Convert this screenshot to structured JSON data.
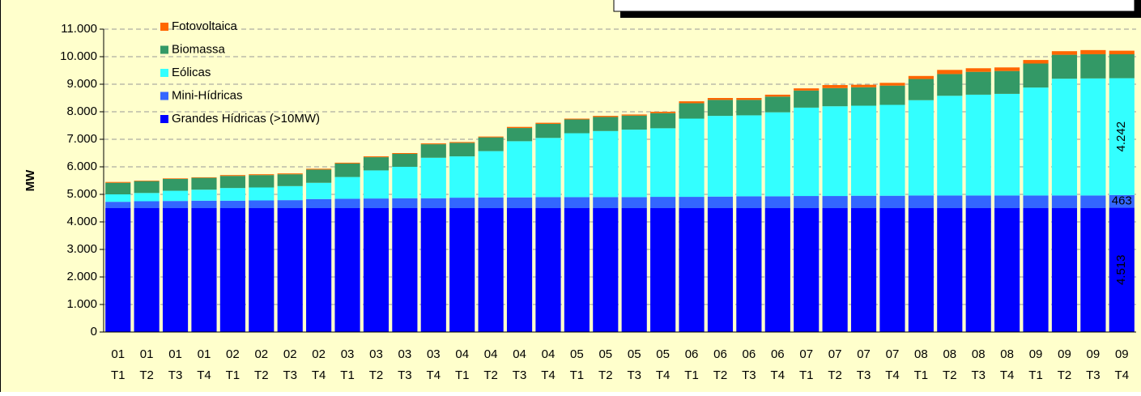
{
  "chart_data": {
    "type": "stacked_bar",
    "y_label": "MW",
    "categories": [
      [
        "01",
        "T1"
      ],
      [
        "01",
        "T2"
      ],
      [
        "01",
        "T3"
      ],
      [
        "01",
        "T4"
      ],
      [
        "02",
        "T1"
      ],
      [
        "02",
        "T2"
      ],
      [
        "02",
        "T3"
      ],
      [
        "02",
        "T4"
      ],
      [
        "03",
        "T1"
      ],
      [
        "03",
        "T2"
      ],
      [
        "03",
        "T3"
      ],
      [
        "03",
        "T4"
      ],
      [
        "04",
        "T1"
      ],
      [
        "04",
        "T2"
      ],
      [
        "04",
        "T3"
      ],
      [
        "04",
        "T4"
      ],
      [
        "05",
        "T1"
      ],
      [
        "05",
        "T2"
      ],
      [
        "05",
        "T3"
      ],
      [
        "05",
        "T4"
      ],
      [
        "06",
        "T1"
      ],
      [
        "06",
        "T2"
      ],
      [
        "06",
        "T3"
      ],
      [
        "06",
        "T4"
      ],
      [
        "07",
        "T1"
      ],
      [
        "07",
        "T2"
      ],
      [
        "07",
        "T3"
      ],
      [
        "07",
        "T4"
      ],
      [
        "08",
        "T1"
      ],
      [
        "08",
        "T2"
      ],
      [
        "08",
        "T3"
      ],
      [
        "08",
        "T4"
      ],
      [
        "09",
        "T1"
      ],
      [
        "09",
        "T2"
      ],
      [
        "09",
        "T3"
      ],
      [
        "09",
        "T4"
      ]
    ],
    "series": [
      {
        "name": "Grandes Hídricas (>10MW)",
        "color": "#0000ff",
        "label_color": "#ffffff",
        "label_rotated": true,
        "values": [
          4500,
          4500,
          4500,
          4500,
          4500,
          4500,
          4500,
          4500,
          4500,
          4500,
          4500,
          4500,
          4500,
          4500,
          4500,
          4500,
          4500,
          4500,
          4500,
          4500,
          4500,
          4500,
          4500,
          4500,
          4500,
          4500,
          4500,
          4500,
          4500,
          4500,
          4500,
          4500,
          4500,
          4500,
          4500,
          4513
        ],
        "value_labels": [
          null,
          null,
          null,
          null,
          null,
          null,
          null,
          null,
          null,
          null,
          null,
          null,
          null,
          null,
          null,
          null,
          null,
          null,
          null,
          null,
          null,
          null,
          null,
          null,
          null,
          null,
          null,
          null,
          null,
          null,
          null,
          null,
          null,
          null,
          null,
          "4.513"
        ]
      },
      {
        "name": "Mini-Hídricas",
        "color": "#3366ff",
        "label_color": "#000000",
        "label_rotated": false,
        "values": [
          230,
          250,
          260,
          270,
          270,
          280,
          290,
          330,
          340,
          350,
          360,
          360,
          380,
          390,
          390,
          400,
          400,
          400,
          400,
          410,
          410,
          420,
          430,
          430,
          440,
          440,
          450,
          450,
          460,
          460,
          460,
          460,
          460,
          460,
          460,
          463
        ],
        "value_labels": [
          null,
          null,
          null,
          null,
          null,
          null,
          null,
          null,
          null,
          null,
          null,
          null,
          null,
          null,
          null,
          null,
          null,
          null,
          null,
          null,
          null,
          null,
          null,
          null,
          null,
          null,
          null,
          null,
          null,
          null,
          null,
          null,
          null,
          null,
          null,
          "463"
        ]
      },
      {
        "name": "Eólicas",
        "color": "#33ffff",
        "label_color": "#000000",
        "label_rotated": true,
        "values": [
          270,
          300,
          370,
          400,
          460,
          470,
          510,
          590,
          790,
          1020,
          1140,
          1470,
          1500,
          1680,
          2040,
          2150,
          2320,
          2400,
          2450,
          2490,
          2840,
          2930,
          2940,
          3050,
          3210,
          3260,
          3270,
          3300,
          3460,
          3620,
          3660,
          3690,
          3920,
          4240,
          4250,
          4242
        ],
        "value_labels": [
          null,
          null,
          null,
          null,
          null,
          null,
          null,
          null,
          null,
          null,
          null,
          null,
          null,
          null,
          null,
          null,
          null,
          null,
          null,
          null,
          null,
          null,
          null,
          null,
          null,
          null,
          null,
          null,
          null,
          null,
          null,
          null,
          null,
          null,
          null,
          "4.242"
        ]
      },
      {
        "name": "Biomassa",
        "color": "#339966",
        "values": [
          420,
          430,
          430,
          430,
          440,
          450,
          430,
          480,
          490,
          480,
          470,
          490,
          490,
          500,
          480,
          510,
          500,
          510,
          510,
          550,
          560,
          580,
          560,
          570,
          620,
          660,
          670,
          700,
          770,
          790,
          830,
          830,
          870,
          870,
          880,
          870
        ]
      },
      {
        "name": "Fotovoltaica",
        "color": "#ff6600",
        "values": [
          30,
          20,
          20,
          20,
          30,
          30,
          30,
          30,
          30,
          30,
          30,
          30,
          30,
          30,
          40,
          40,
          30,
          40,
          40,
          50,
          70,
          70,
          70,
          70,
          80,
          110,
          90,
          100,
          110,
          150,
          130,
          130,
          130,
          130,
          150,
          130
        ]
      }
    ],
    "ylim": [
      0,
      11000
    ],
    "yticks": [
      0,
      {
        "value": 1000,
        "label": "1.000"
      },
      {
        "value": 2000,
        "label": "2.000"
      },
      {
        "value": 3000,
        "label": "3.000"
      },
      {
        "value": 4000,
        "label": "4.000"
      },
      {
        "value": 5000,
        "label": "5.000"
      },
      {
        "value": 6000,
        "label": "6.000"
      },
      {
        "value": 7000,
        "label": "7.000"
      },
      {
        "value": 8000,
        "label": "8.000"
      },
      {
        "value": 9000,
        "label": "9.000"
      },
      {
        "value": 10000,
        "label": "10.000"
      },
      {
        "value": 11000,
        "label": "11.000"
      }
    ],
    "grid": true,
    "legend": "top-left",
    "background": "#ffffcc"
  }
}
